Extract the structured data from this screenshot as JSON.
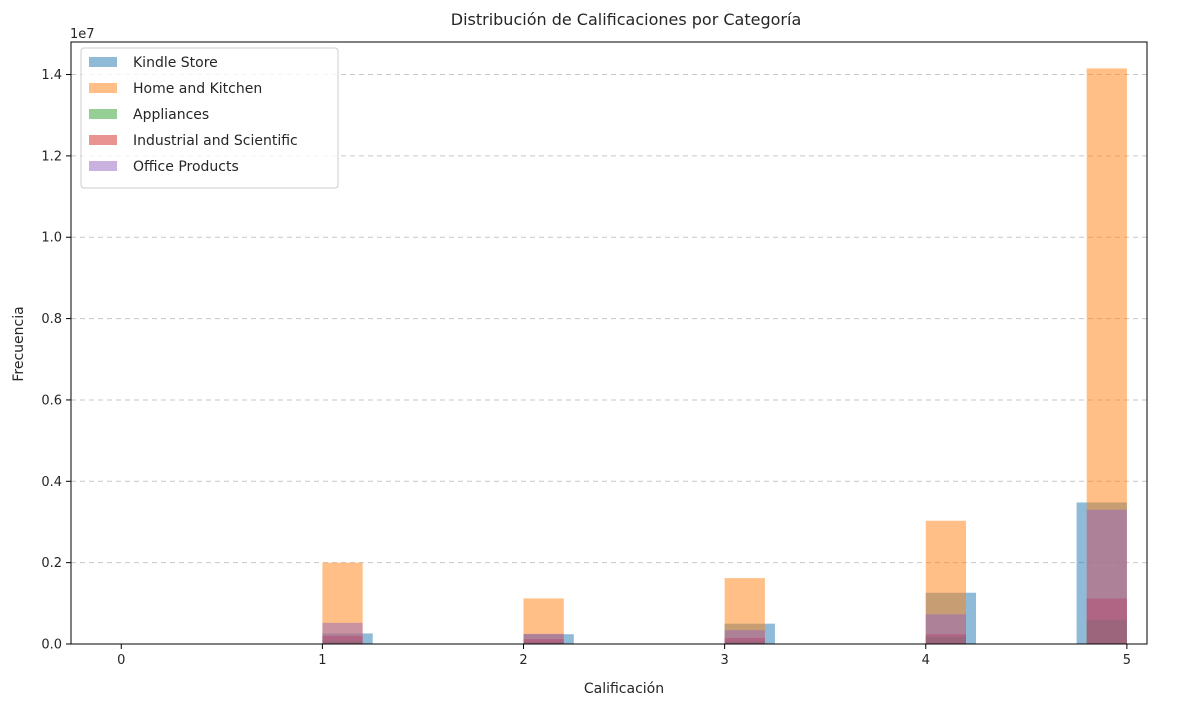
{
  "chart_data": {
    "type": "bar",
    "title": "Distribución de Calificaciones por Categoría",
    "xlabel": "Calificación",
    "ylabel": "Frecuencia",
    "y_offset_label": "1e7",
    "xlim": [
      -0.25,
      5.1
    ],
    "ylim": [
      0,
      1.48
    ],
    "x_ticks": [
      0,
      1,
      2,
      3,
      4,
      5
    ],
    "y_ticks": [
      0.0,
      0.2,
      0.4,
      0.6,
      0.8,
      1.0,
      1.2,
      1.4
    ],
    "y_tick_labels": [
      "0.0",
      "0.2",
      "0.4",
      "0.6",
      "0.8",
      "1.0",
      "1.2",
      "1.4"
    ],
    "grid": "y dashed",
    "legend_position": "top-left",
    "series": [
      {
        "name": "Kindle Store",
        "color": "#1f77b4",
        "opacity": 0.5,
        "bins": [
          [
            1.0,
            1.25
          ],
          [
            2.0,
            2.25
          ],
          [
            3.0,
            3.25
          ],
          [
            4.0,
            4.25
          ],
          [
            4.75,
            5.0
          ]
        ],
        "values": [
          0.026,
          0.024,
          0.05,
          0.126,
          0.348
        ]
      },
      {
        "name": "Home and Kitchen",
        "color": "#ff7f0e",
        "opacity": 0.5,
        "bins": [
          [
            1.0,
            1.2
          ],
          [
            2.0,
            2.2
          ],
          [
            3.0,
            3.2
          ],
          [
            4.0,
            4.2
          ],
          [
            4.8,
            5.0
          ]
        ],
        "values": [
          0.2,
          0.112,
          0.162,
          0.303,
          1.415
        ]
      },
      {
        "name": "Appliances",
        "color": "#2ca02c",
        "opacity": 0.5,
        "bins": [
          [
            1.0,
            1.2
          ],
          [
            2.0,
            2.2
          ],
          [
            3.0,
            3.2
          ],
          [
            4.0,
            4.2
          ],
          [
            4.8,
            5.0
          ]
        ],
        "values": [
          0.008,
          0.005,
          0.007,
          0.018,
          0.06
        ]
      },
      {
        "name": "Industrial and Scientific",
        "color": "#d62728",
        "opacity": 0.5,
        "bins": [
          [
            1.0,
            1.2
          ],
          [
            2.0,
            2.2
          ],
          [
            3.0,
            3.2
          ],
          [
            4.0,
            4.2
          ],
          [
            4.8,
            5.0
          ]
        ],
        "values": [
          0.02,
          0.012,
          0.015,
          0.024,
          0.112
        ]
      },
      {
        "name": "Office Products",
        "color": "#9467bd",
        "opacity": 0.5,
        "bins": [
          [
            1.0,
            1.2
          ],
          [
            2.0,
            2.2
          ],
          [
            3.0,
            3.2
          ],
          [
            4.0,
            4.2
          ],
          [
            4.8,
            5.0
          ]
        ],
        "values": [
          0.052,
          0.025,
          0.034,
          0.073,
          0.33
        ]
      }
    ]
  }
}
